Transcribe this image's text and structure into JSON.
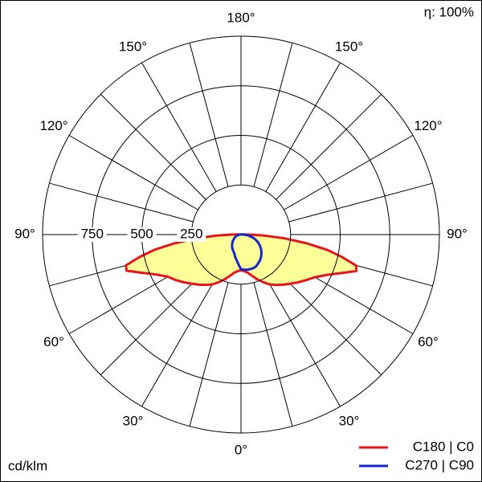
{
  "chart_data": {
    "type": "polar-intensity",
    "efficiency_label": "η: 100%",
    "unit_label": "cd/klm",
    "rlim": [
      0,
      1000
    ],
    "rticks": [
      250,
      500,
      750
    ],
    "angle_ticks": [
      {
        "value": 0,
        "label": "0°"
      },
      {
        "value": 30,
        "label": "30°"
      },
      {
        "value": 60,
        "label": "60°"
      },
      {
        "value": 90,
        "label": "90°"
      },
      {
        "value": 120,
        "label": "120°"
      },
      {
        "value": 150,
        "label": "150°"
      },
      {
        "value": 180,
        "label": "180°"
      }
    ],
    "angles": [
      0,
      5,
      10,
      15,
      20,
      25,
      30,
      35,
      40,
      45,
      50,
      55,
      60,
      65,
      70,
      72.5,
      75,
      77.5,
      80,
      82.5,
      85,
      87.5,
      90,
      95
    ],
    "series": [
      {
        "name": "C180 | C0",
        "color": "#e8141c",
        "fill": "#ffff99",
        "right": [
          180,
          185,
          195,
          215,
          240,
          265,
          290,
          310,
          330,
          350,
          375,
          400,
          430,
          480,
          560,
          610,
          600,
          520,
          440,
          330,
          220,
          120,
          40,
          10
        ],
        "left": [
          180,
          185,
          195,
          215,
          240,
          265,
          290,
          310,
          330,
          350,
          375,
          400,
          425,
          475,
          555,
          605,
          600,
          525,
          445,
          340,
          230,
          130,
          50,
          15
        ]
      },
      {
        "name": "C270 | C90",
        "color": "#1428c8",
        "right": [
          175,
          177,
          180,
          180,
          180,
          178,
          170,
          163,
          155,
          145,
          135,
          122,
          110,
          95,
          80,
          72,
          64,
          54,
          45,
          35,
          25,
          17,
          10,
          0
        ],
        "left": [
          175,
          150,
          130,
          115,
          100,
          92,
          85,
          78,
          70,
          62,
          55,
          47,
          40,
          34,
          28,
          25,
          22,
          18,
          15,
          11,
          8,
          6,
          5,
          0
        ]
      }
    ]
  }
}
